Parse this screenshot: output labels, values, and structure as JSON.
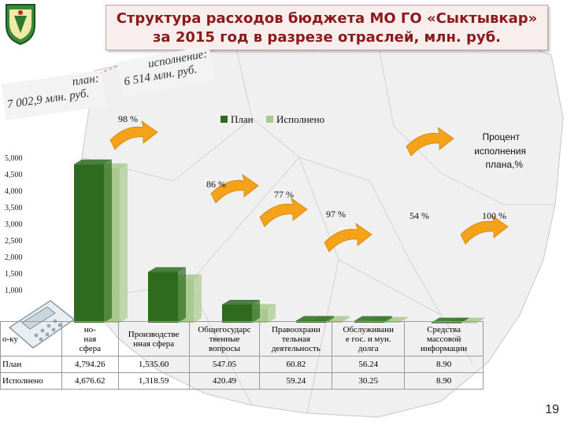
{
  "title": {
    "line1": "Структура расходов бюджета МО ГО «Сыктывкар»",
    "line2": "за 2015 год в разрезе отраслей, млн. руб."
  },
  "callouts": {
    "plan_line1": "план:",
    "plan_line2": "7 002,9 млн. руб.",
    "exec_line1": "исполнение:",
    "exec_line2": "6 514 млн. руб."
  },
  "page_number": "19",
  "colors": {
    "plan": "#2e6b1e",
    "executed": "#a9c98f",
    "arrow": "#f4a21a",
    "title": "#8b1a1a"
  },
  "icons": [
    "city-emblem-icon",
    "calculator-icon",
    "arrow-icon"
  ],
  "chart_data": {
    "type": "bar",
    "legend": [
      "План",
      "Исполнено"
    ],
    "legend_position": "top",
    "annotation_label": "Процент исполнения плана,%",
    "y_ticks": [
      "1,000",
      "1,500",
      "2,000",
      "2,500",
      "3,000",
      "3,500",
      "4,000",
      "4,500",
      "5,000"
    ],
    "ylim": [
      0,
      5000
    ],
    "categories": [
      "Социально-культурная сфера",
      "Производственная сфера",
      "Общегосударственные вопросы",
      "Правоохранительная деятельность",
      "Обслуживание гос. и мун. долга",
      "Средства массовой информации"
    ],
    "series": [
      {
        "name": "План",
        "values": [
          4794.26,
          1535.6,
          547.05,
          60.82,
          56.24,
          8.9
        ]
      },
      {
        "name": "Исполнено",
        "values": [
          4676.62,
          1318.59,
          420.49,
          59.24,
          30.25,
          8.9
        ]
      }
    ],
    "percent_labels": [
      "98 %",
      "86 %",
      "77 %",
      "97 %",
      "54 %",
      "100 %"
    ],
    "table": {
      "row_labels": [
        "План",
        "Исполнено"
      ],
      "left_header_fragment": "о-ку",
      "visible_category_labels": [
        "но-\nная\nсфера",
        "Производстве\nнная сфера",
        "Общегосударс\nтвенные\nвопросы",
        "Правоохрани\nтельная\nдеятельность",
        "Обслуживани\nе гос. и мун.\nдолга",
        "Средства\nмассовой\nинформации"
      ],
      "plan_values": [
        "4,794.26",
        "1,535.60",
        "547.05",
        "60.82",
        "56.24",
        "8.90"
      ],
      "executed_values": [
        "4,676.62",
        "1,318.59",
        "420.49",
        "59.24",
        "30.25",
        "8.90"
      ]
    }
  }
}
